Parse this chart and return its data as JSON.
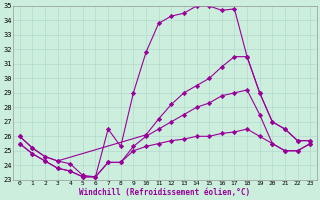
{
  "xlabel": "Windchill (Refroidissement éolien,°C)",
  "line_color": "#990099",
  "bg_color": "#cceedd",
  "grid_color": "#aaccbb",
  "xlim": [
    -0.5,
    23.5
  ],
  "ylim": [
    23,
    35
  ],
  "xticks": [
    0,
    1,
    2,
    3,
    4,
    5,
    6,
    7,
    8,
    9,
    10,
    11,
    12,
    13,
    14,
    15,
    16,
    17,
    18,
    19,
    20,
    21,
    22,
    23
  ],
  "yticks": [
    23,
    24,
    25,
    26,
    27,
    28,
    29,
    30,
    31,
    32,
    33,
    34,
    35
  ],
  "lines": [
    {
      "x": [
        0,
        1,
        2,
        3,
        4,
        5,
        6,
        7,
        8,
        9,
        10,
        11,
        12,
        13,
        14,
        15,
        16,
        17,
        18,
        19,
        20,
        21,
        22,
        23
      ],
      "y": [
        26,
        25.2,
        24.6,
        24.3,
        24.1,
        23.3,
        23.2,
        26.5,
        25.3,
        29.0,
        31.8,
        33.8,
        34.3,
        34.5,
        35.0,
        35.0,
        34.7,
        34.8,
        31.5,
        29.0,
        27.0,
        26.5,
        25.7,
        25.7
      ]
    },
    {
      "x": [
        0,
        1,
        2,
        3,
        10,
        11,
        12,
        13,
        14,
        15,
        16,
        17,
        18,
        19,
        20,
        21,
        22,
        23
      ],
      "y": [
        26,
        25.2,
        24.6,
        24.3,
        26.1,
        27.2,
        28.2,
        29.0,
        29.5,
        30.0,
        30.8,
        31.5,
        31.5,
        29.0,
        27.0,
        26.5,
        25.7,
        25.7
      ]
    },
    {
      "x": [
        0,
        1,
        2,
        3,
        4,
        5,
        6,
        7,
        8,
        9,
        10,
        11,
        12,
        13,
        14,
        15,
        16,
        17,
        18,
        19,
        20,
        21,
        22,
        23
      ],
      "y": [
        25.5,
        24.8,
        24.3,
        23.8,
        23.6,
        23.2,
        23.2,
        24.2,
        24.2,
        25.3,
        26.0,
        26.5,
        27.0,
        27.5,
        28.0,
        28.3,
        28.8,
        29.0,
        29.2,
        27.5,
        25.5,
        25.0,
        25.0,
        25.5
      ]
    },
    {
      "x": [
        0,
        1,
        2,
        3,
        4,
        5,
        6,
        7,
        8,
        9,
        10,
        11,
        12,
        13,
        14,
        15,
        16,
        17,
        18,
        19,
        20,
        21,
        22,
        23
      ],
      "y": [
        25.5,
        24.8,
        24.3,
        23.8,
        23.6,
        23.2,
        23.2,
        24.2,
        24.2,
        25.0,
        25.3,
        25.5,
        25.7,
        25.8,
        26.0,
        26.0,
        26.2,
        26.3,
        26.5,
        26.0,
        25.5,
        25.0,
        25.0,
        25.5
      ]
    }
  ]
}
